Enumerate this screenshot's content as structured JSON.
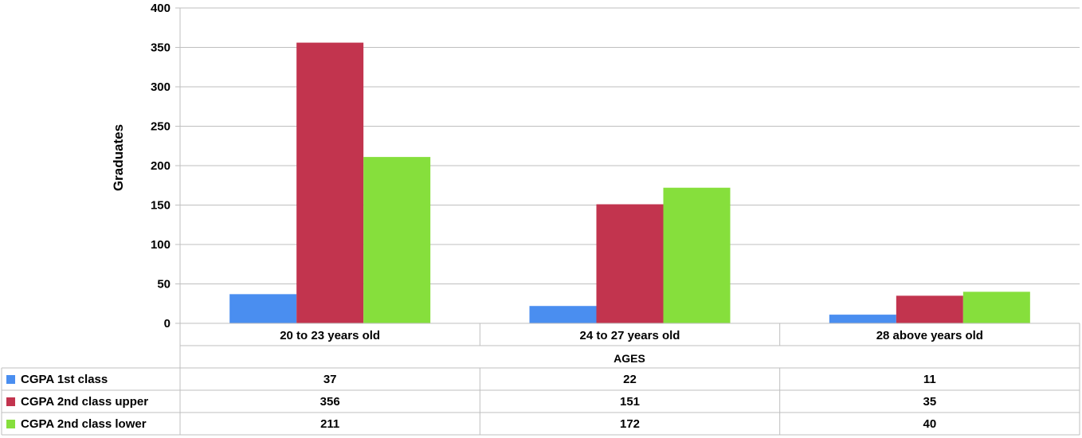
{
  "chart_data": {
    "type": "bar",
    "title": "",
    "xlabel": "AGES",
    "ylabel": "Graduates",
    "ylim": [
      0,
      400
    ],
    "yticks": [
      0,
      50,
      100,
      150,
      200,
      250,
      300,
      350,
      400
    ],
    "grid": true,
    "legend": "data-table-left",
    "categories": [
      "20 to 23 years old",
      "24 to 27 years old",
      "28 above years old"
    ],
    "series": [
      {
        "name": "CGPA 1st class",
        "color": "#4a8ef0",
        "values": [
          37,
          22,
          11
        ]
      },
      {
        "name": "CGPA 2nd class upper",
        "color": "#c2344e",
        "values": [
          356,
          151,
          35
        ]
      },
      {
        "name": "CGPA 2nd class lower",
        "color": "#86df3c",
        "values": [
          211,
          172,
          40
        ]
      }
    ]
  }
}
